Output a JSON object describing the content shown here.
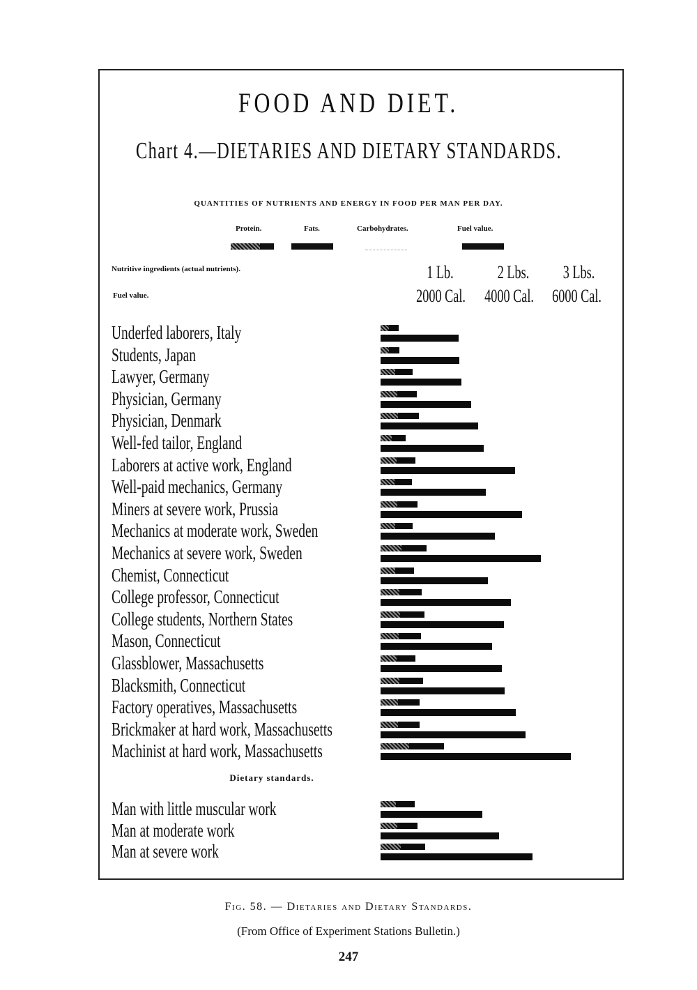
{
  "chart_data": {
    "type": "bar",
    "orientation": "horizontal",
    "title": "FOOD AND DIET.",
    "subtitle": "Chart 4.—DIETARIES AND DIETARY STANDARDS.",
    "description_line": "QUANTITIES OF NUTRIENTS AND ENERGY IN FOOD PER MAN PER DAY.",
    "legend": [
      "Protein.",
      "Fats.",
      "Carbohydrates.",
      "Fuel value."
    ],
    "legend_placement": "top",
    "row_labels": {
      "nutrients": "Nutritive ingredients (actual nutrients).",
      "fuel": "Fuel value."
    },
    "axis_ticks_nutrients": [
      "1 Lb.",
      "2 Lbs.",
      "3 Lbs."
    ],
    "axis_ticks_fuel": [
      "2000 Cal.",
      "4000 Cal.",
      "6000 Cal."
    ],
    "xlim_nutrients_lbs": [
      0,
      3.3
    ],
    "xlim_fuel_cal": [
      0,
      6600
    ],
    "grid": false,
    "section_label": "Dietary standards.",
    "categories": [
      "Underfed laborers, Italy",
      "Students, Japan",
      "Lawyer, Germany",
      "Physician, Germany",
      "Physician, Denmark",
      "Well-fed tailor, England",
      "Laborers at active work, England",
      "Well-paid mechanics, Germany",
      "Miners at severe work, Prussia",
      "Mechanics at moderate work, Sweden",
      "Mechanics at severe work, Sweden",
      "Chemist, Connecticut",
      "College professor, Connecticut",
      "College students, Northern States",
      "Mason, Connecticut",
      "Glassblower, Massachusetts",
      "Blacksmith, Connecticut",
      "Factory operatives, Massachusetts",
      "Brickmaker at hard work, Massachusetts",
      "Machinist at hard work, Massachusetts"
    ],
    "standards": [
      "Man with little muscular work",
      "Man at moderate work",
      "Man at severe work"
    ],
    "series": [
      {
        "name": "Nutritive ingredients (actual nutrients).",
        "unit": "lbs",
        "values": [
          0.27,
          0.28,
          0.47,
          0.54,
          0.57,
          0.37,
          0.52,
          0.46,
          0.55,
          0.47,
          0.68,
          0.49,
          0.61,
          0.65,
          0.6,
          0.52,
          0.63,
          0.58,
          0.58,
          0.94
        ],
        "standards_values": [
          0.51,
          0.55,
          0.66
        ]
      },
      {
        "name": "Fuel value.",
        "unit": "Cal",
        "values": [
          2310,
          2330,
          2390,
          2680,
          2890,
          3050,
          3980,
          3110,
          4190,
          3380,
          4740,
          3180,
          3860,
          3650,
          3300,
          3590,
          3670,
          4000,
          4290,
          5630
        ],
        "standards_values": [
          3000,
          3500,
          4500
        ]
      }
    ],
    "colors": {
      "bars": "#0c0c0c"
    }
  },
  "caption": {
    "figure": "Fig. 58. — Dietaries and Dietary Standards.",
    "source": "(From Office of Experiment Stations Bulletin.)"
  },
  "page_number": "247"
}
